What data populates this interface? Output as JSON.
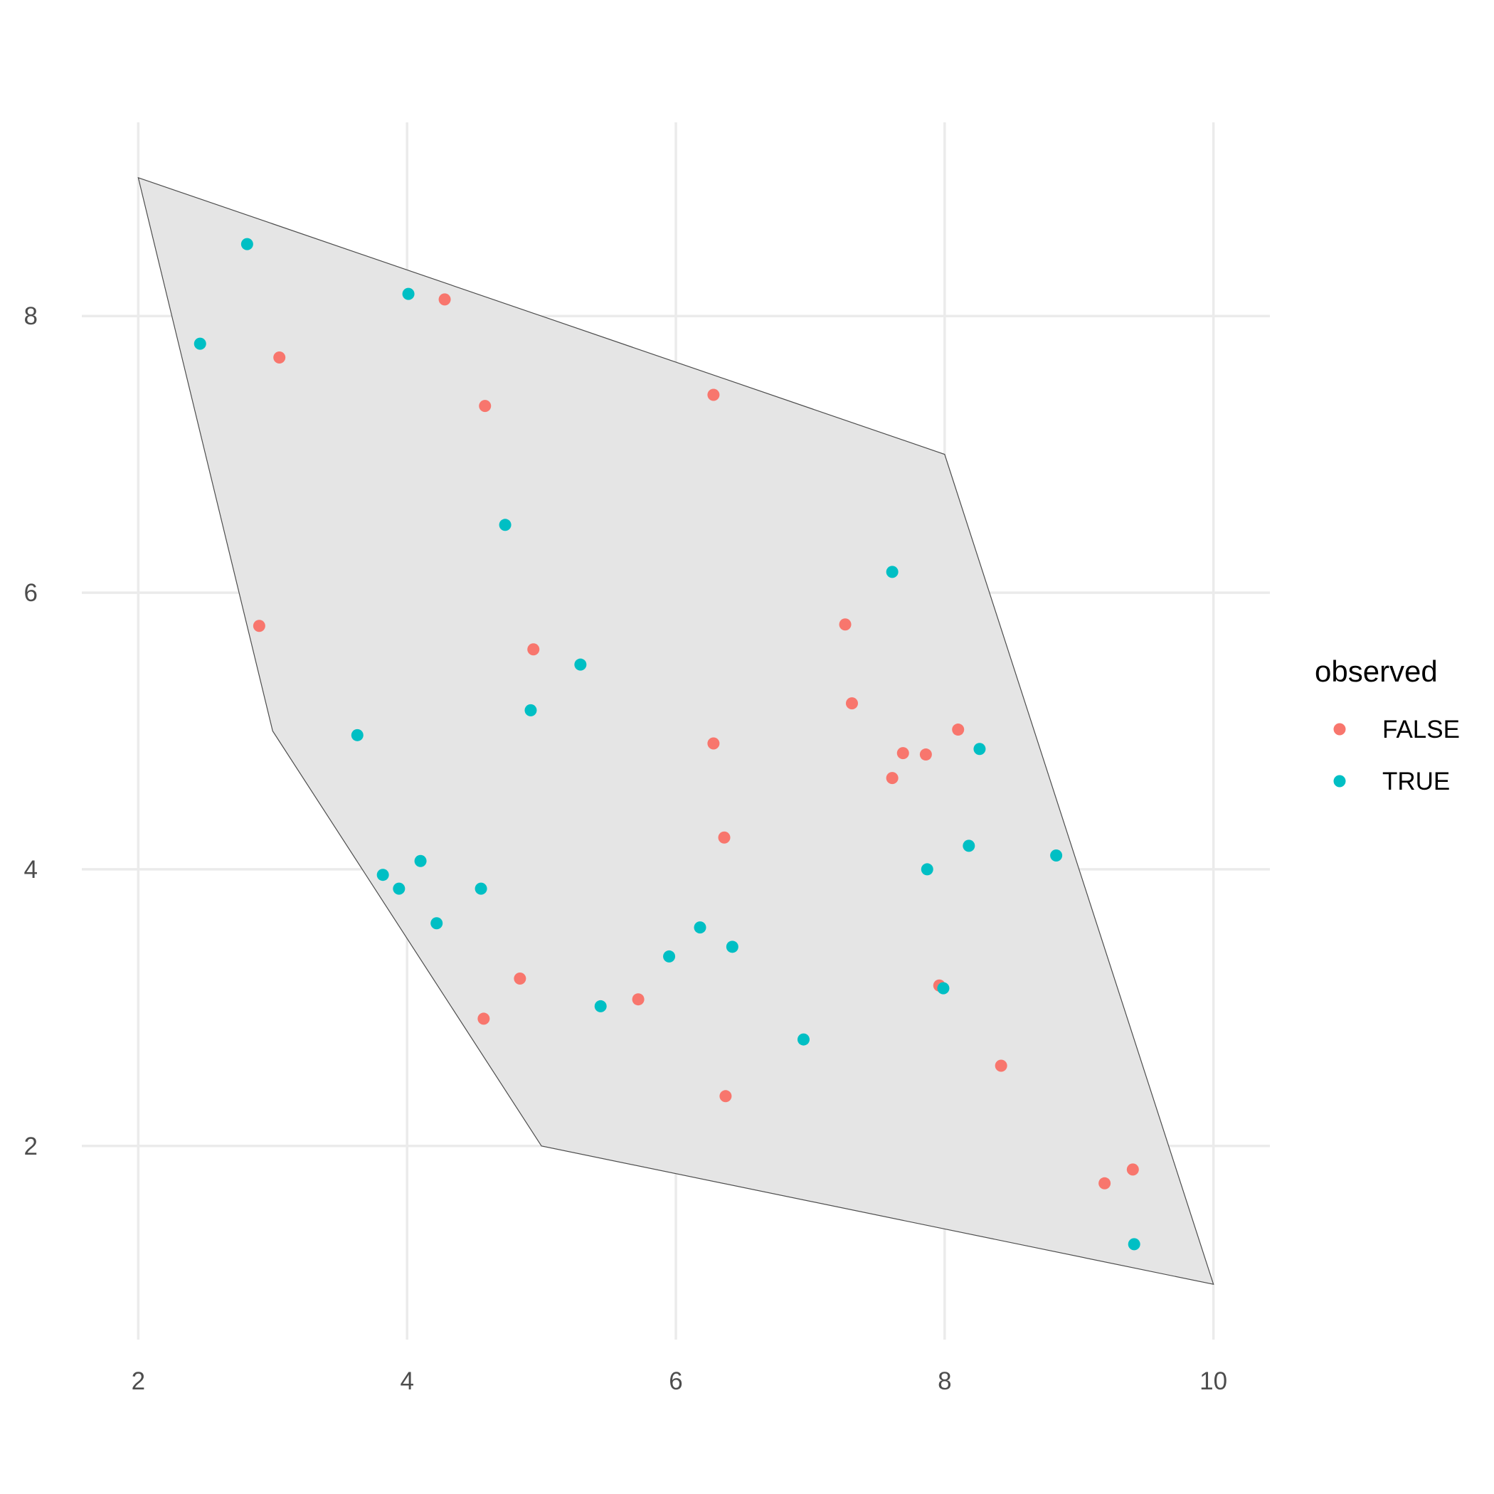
{
  "chart_data": {
    "type": "scatter",
    "title": "",
    "xlabel": "",
    "ylabel": "",
    "xlim": [
      1.58,
      10.42
    ],
    "ylim": [
      0.6,
      9.4
    ],
    "x_ticks": [
      2,
      4,
      6,
      8,
      10
    ],
    "y_ticks": [
      2,
      4,
      6,
      8
    ],
    "grid": true,
    "legend": {
      "title": "observed",
      "position": "right",
      "entries": [
        {
          "label": "FALSE",
          "color": "#f8766d"
        },
        {
          "label": "TRUE",
          "color": "#00bfc4"
        }
      ]
    },
    "polygon": {
      "fill": "#e5e5e5",
      "stroke": "#4d4d4d",
      "vertices": [
        [
          2,
          9
        ],
        [
          8,
          7
        ],
        [
          10,
          1
        ],
        [
          5,
          2
        ],
        [
          3,
          5
        ]
      ]
    },
    "series": [
      {
        "name": "FALSE",
        "color": "#f8766d",
        "points": [
          [
            3.05,
            7.7
          ],
          [
            4.28,
            8.12
          ],
          [
            4.58,
            7.35
          ],
          [
            2.9,
            5.76
          ],
          [
            4.94,
            5.59
          ],
          [
            6.28,
            7.43
          ],
          [
            7.26,
            5.77
          ],
          [
            7.31,
            5.2
          ],
          [
            6.28,
            4.91
          ],
          [
            7.69,
            4.84
          ],
          [
            7.86,
            4.83
          ],
          [
            8.1,
            5.01
          ],
          [
            7.61,
            4.66
          ],
          [
            6.36,
            4.23
          ],
          [
            4.84,
            3.21
          ],
          [
            4.57,
            2.92
          ],
          [
            5.72,
            3.06
          ],
          [
            7.96,
            3.16
          ],
          [
            8.42,
            2.58
          ],
          [
            6.37,
            2.36
          ],
          [
            9.19,
            1.73
          ],
          [
            9.4,
            1.83
          ]
        ]
      },
      {
        "name": "TRUE",
        "color": "#00bfc4",
        "points": [
          [
            2.81,
            8.52
          ],
          [
            2.46,
            7.8
          ],
          [
            4.01,
            8.16
          ],
          [
            4.73,
            6.49
          ],
          [
            7.61,
            6.15
          ],
          [
            5.29,
            5.48
          ],
          [
            4.92,
            5.15
          ],
          [
            3.63,
            4.97
          ],
          [
            8.26,
            4.87
          ],
          [
            8.18,
            4.17
          ],
          [
            8.83,
            4.1
          ],
          [
            7.87,
            4.0
          ],
          [
            3.82,
            3.96
          ],
          [
            3.94,
            3.86
          ],
          [
            4.1,
            4.06
          ],
          [
            4.55,
            3.86
          ],
          [
            4.22,
            3.61
          ],
          [
            6.18,
            3.58
          ],
          [
            5.95,
            3.37
          ],
          [
            6.42,
            3.44
          ],
          [
            5.44,
            3.01
          ],
          [
            7.99,
            3.14
          ],
          [
            6.95,
            2.77
          ],
          [
            9.41,
            1.29
          ]
        ]
      }
    ]
  }
}
